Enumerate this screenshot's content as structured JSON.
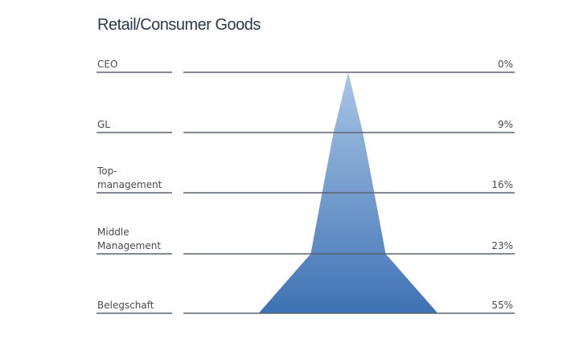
{
  "chart_data": {
    "type": "area",
    "title": "Retail/Consumer Goods",
    "categories": [
      "CEO",
      "GL",
      "Top-\nmanagement",
      "Middle\nManagement",
      "Belegschaft"
    ],
    "values": [
      0,
      9,
      16,
      23,
      55
    ],
    "value_labels": [
      "0%",
      "9%",
      "16%",
      "23%",
      "55%"
    ],
    "colors": {
      "top": "#a9c6e6",
      "bottom": "#3f72b4",
      "line": "#5b6470"
    },
    "grid": true
  }
}
